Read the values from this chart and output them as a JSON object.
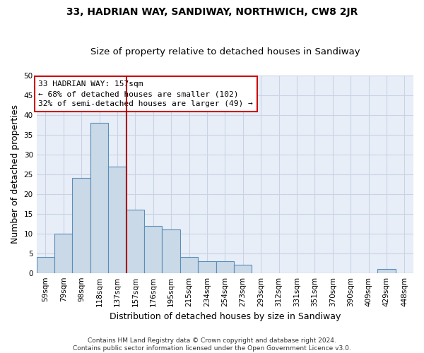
{
  "title": "33, HADRIAN WAY, SANDIWAY, NORTHWICH, CW8 2JR",
  "subtitle": "Size of property relative to detached houses in Sandiway",
  "xlabel": "Distribution of detached houses by size in Sandiway",
  "ylabel": "Number of detached properties",
  "categories": [
    "59sqm",
    "79sqm",
    "98sqm",
    "118sqm",
    "137sqm",
    "157sqm",
    "176sqm",
    "195sqm",
    "215sqm",
    "234sqm",
    "254sqm",
    "273sqm",
    "293sqm",
    "312sqm",
    "331sqm",
    "351sqm",
    "370sqm",
    "390sqm",
    "409sqm",
    "429sqm",
    "448sqm"
  ],
  "values": [
    4,
    10,
    24,
    38,
    27,
    16,
    12,
    11,
    4,
    3,
    3,
    2,
    0,
    0,
    0,
    0,
    0,
    0,
    0,
    1,
    0
  ],
  "bar_color": "#c9d9e8",
  "bar_edge_color": "#5b8db8",
  "highlight_index": 5,
  "highlight_line_color": "#aa0000",
  "annotation_text": "33 HADRIAN WAY: 157sqm\n← 68% of detached houses are smaller (102)\n32% of semi-detached houses are larger (49) →",
  "annotation_box_color": "#ffffff",
  "annotation_box_edge_color": "#cc0000",
  "ylim": [
    0,
    50
  ],
  "yticks": [
    0,
    5,
    10,
    15,
    20,
    25,
    30,
    35,
    40,
    45,
    50
  ],
  "grid_color": "#c8d4e4",
  "background_color": "#e8eef8",
  "footer_text": "Contains HM Land Registry data © Crown copyright and database right 2024.\nContains public sector information licensed under the Open Government Licence v3.0.",
  "title_fontsize": 10,
  "subtitle_fontsize": 9.5,
  "tick_fontsize": 7.5,
  "ylabel_fontsize": 9,
  "xlabel_fontsize": 9,
  "footer_fontsize": 6.5
}
